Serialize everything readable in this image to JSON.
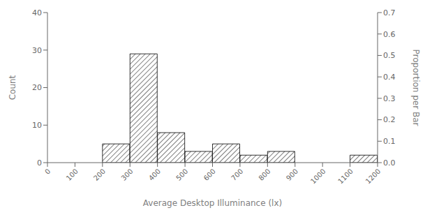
{
  "chart_data": {
    "type": "histogram",
    "bins": [
      0,
      100,
      200,
      300,
      400,
      500,
      600,
      700,
      800,
      900,
      1000,
      1100,
      1200
    ],
    "values": [
      0,
      0,
      5,
      29,
      8,
      3,
      5,
      2,
      3,
      0,
      0,
      2
    ],
    "xlabel": "Average Desktop Illuminance (lx)",
    "ylabel": "Count",
    "y2label": "Proportion per Bar",
    "xlim": [
      0,
      1200
    ],
    "xticks": [
      0,
      100,
      200,
      300,
      400,
      500,
      600,
      700,
      800,
      900,
      1000,
      1100,
      1200
    ],
    "ylim": [
      0,
      40
    ],
    "yticks": [
      0,
      10,
      20,
      30,
      40
    ],
    "y2lim": [
      0,
      0.7
    ],
    "y2ticks": [
      {
        "value": 0.0,
        "label": "0.0"
      },
      0.1,
      0.2,
      0.3,
      0.4,
      0.5,
      0.6,
      0.7
    ],
    "color": "white",
    "grid": false
  }
}
